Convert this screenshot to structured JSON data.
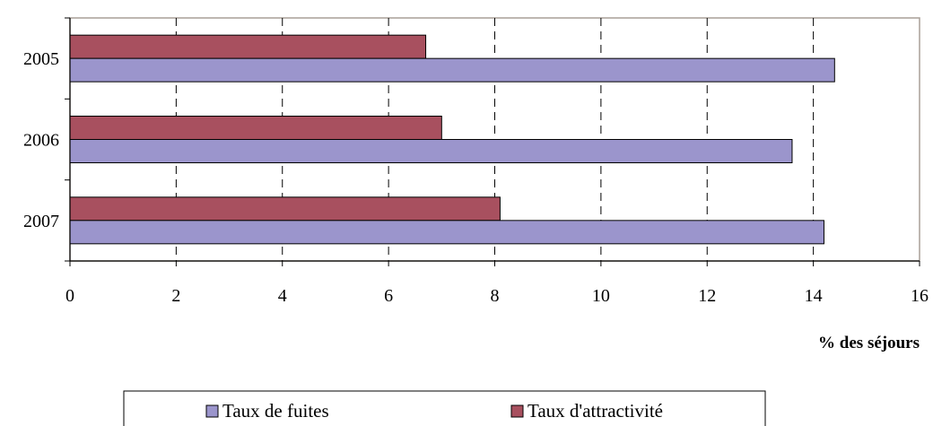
{
  "chart_data": {
    "type": "bar",
    "orientation": "horizontal",
    "categories": [
      "2005",
      "2006",
      "2007"
    ],
    "series": [
      {
        "name": "Taux d'attractivité",
        "values": [
          6.7,
          7.0,
          8.1
        ],
        "color": "#a8505f"
      },
      {
        "name": "Taux de fuites",
        "values": [
          14.4,
          13.6,
          14.2
        ],
        "color": "#9b95cc"
      }
    ],
    "xlabel": "% des séjours",
    "xlim": [
      0,
      16
    ],
    "xticks": [
      "0",
      "2",
      "4",
      "6",
      "8",
      "10",
      "12",
      "14",
      "16"
    ],
    "grid": "vertical dashed",
    "legend": {
      "position": "bottom",
      "order": [
        "Taux de fuites",
        "Taux d'attractivité"
      ]
    }
  }
}
